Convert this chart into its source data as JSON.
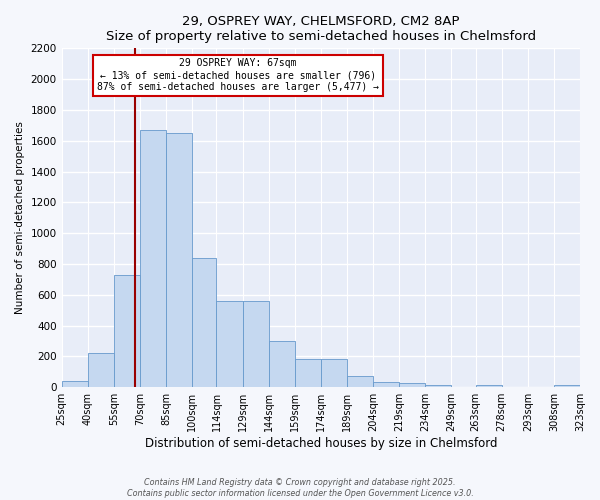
{
  "title": "29, OSPREY WAY, CHELMSFORD, CM2 8AP",
  "subtitle": "Size of property relative to semi-detached houses in Chelmsford",
  "xlabel": "Distribution of semi-detached houses by size in Chelmsford",
  "ylabel": "Number of semi-detached properties",
  "bar_color": "#c5d8f0",
  "bar_edge_color": "#6699cc",
  "bg_color": "#e8edf8",
  "fig_bg_color": "#f5f7fc",
  "grid_color": "#ffffff",
  "property_line_x": 67,
  "property_line_color": "#990000",
  "annotation_line1": "29 OSPREY WAY: 67sqm",
  "annotation_line2": "← 13% of semi-detached houses are smaller (796)",
  "annotation_line3": "87% of semi-detached houses are larger (5,477) →",
  "annotation_box_color": "#ffffff",
  "annotation_box_edge": "#cc0000",
  "bin_edges": [
    25,
    40,
    55,
    70,
    85,
    100,
    114,
    129,
    144,
    159,
    174,
    189,
    204,
    219,
    234,
    249,
    263,
    278,
    293,
    308,
    323
  ],
  "bin_heights": [
    40,
    220,
    730,
    1670,
    1650,
    840,
    560,
    560,
    300,
    180,
    180,
    70,
    35,
    25,
    15,
    0,
    15,
    0,
    0,
    15
  ],
  "tick_labels": [
    "25sqm",
    "40sqm",
    "55sqm",
    "70sqm",
    "85sqm",
    "100sqm",
    "114sqm",
    "129sqm",
    "144sqm",
    "159sqm",
    "174sqm",
    "189sqm",
    "204sqm",
    "219sqm",
    "234sqm",
    "249sqm",
    "263sqm",
    "278sqm",
    "293sqm",
    "308sqm",
    "323sqm"
  ],
  "ylim": [
    0,
    2200
  ],
  "yticks": [
    0,
    200,
    400,
    600,
    800,
    1000,
    1200,
    1400,
    1600,
    1800,
    2000,
    2200
  ],
  "footer1": "Contains HM Land Registry data © Crown copyright and database right 2025.",
  "footer2": "Contains public sector information licensed under the Open Government Licence v3.0."
}
